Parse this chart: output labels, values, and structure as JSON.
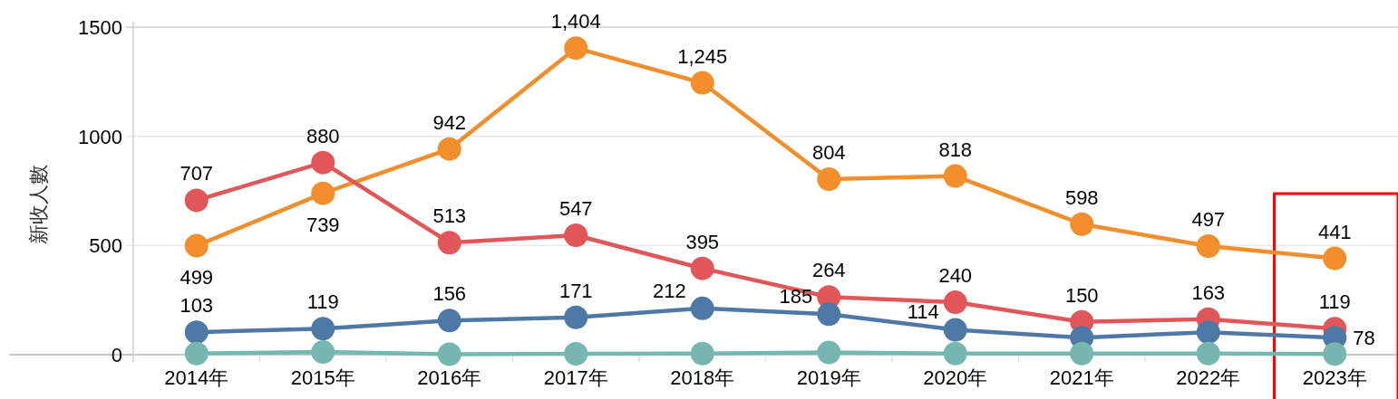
{
  "chart_data": {
    "type": "line",
    "ylabel": "新收人數",
    "categories": [
      "2014年",
      "2015年",
      "2016年",
      "2017年",
      "2018年",
      "2019年",
      "2020年",
      "2021年",
      "2022年",
      "2023年"
    ],
    "series": [
      {
        "color": "#f28e2b",
        "values": [
          499,
          739,
          942,
          1404,
          1245,
          804,
          818,
          598,
          497,
          441
        ],
        "value_labels": [
          "499",
          "739",
          "942",
          "1,404",
          "1,245",
          "804",
          "818",
          "598",
          "497",
          "441"
        ]
      },
      {
        "color": "#e15759",
        "values": [
          707,
          880,
          513,
          547,
          395,
          264,
          240,
          150,
          163,
          119
        ],
        "value_labels": [
          "707",
          "880",
          "513",
          "547",
          "395",
          "264",
          "240",
          "150",
          "163",
          "119"
        ]
      },
      {
        "color": "#4e79a7",
        "values": [
          103,
          119,
          156,
          171,
          212,
          185,
          114,
          78,
          103,
          78
        ],
        "value_labels": [
          "103",
          "119",
          "156",
          "171",
          "212",
          "185",
          "114",
          null,
          null,
          "78"
        ]
      },
      {
        "color": "#76b7b2",
        "values": [
          5,
          12,
          2,
          4,
          5,
          10,
          5,
          5,
          5,
          3
        ]
      }
    ],
    "ylim": [
      0,
      1500
    ],
    "yticks": [
      0,
      500,
      1000,
      1500
    ],
    "grid": "y",
    "marker": "circle",
    "line_style": "solid"
  }
}
